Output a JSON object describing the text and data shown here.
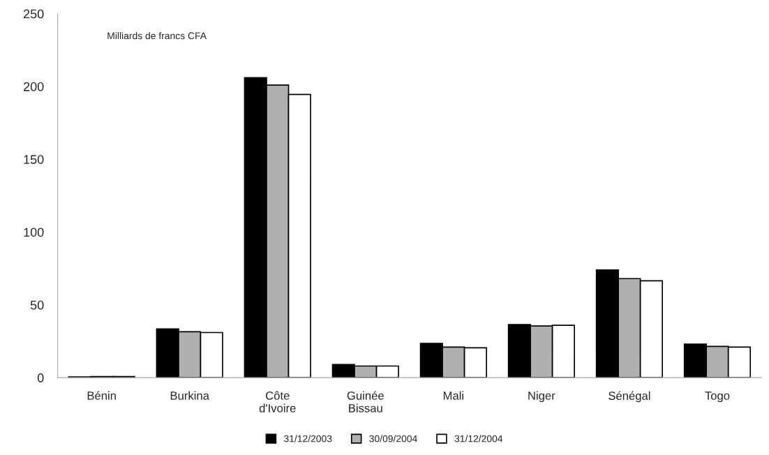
{
  "chart_data": {
    "type": "bar",
    "categories": [
      "Bénin",
      "Burkina",
      "Côte\nd'Ivoire",
      "Guinée\nBissau",
      "Mali",
      "Niger",
      "Sénégal",
      "Togo"
    ],
    "series": [
      {
        "name": "31/12/2003",
        "color": "#000000",
        "values": [
          0.5,
          33.5,
          206,
          9,
          23.5,
          36.5,
          74,
          23
        ]
      },
      {
        "name": "30/09/2004",
        "color": "#b0b0b0",
        "values": [
          0.8,
          31.5,
          201,
          8,
          21,
          35.5,
          68,
          21.5
        ]
      },
      {
        "name": "31/12/2004",
        "color": "#ffffff",
        "values": [
          0.8,
          31,
          194.5,
          8,
          20.5,
          36,
          66.5,
          21
        ]
      }
    ],
    "ylim": [
      0,
      250
    ],
    "yticks": [
      0,
      50,
      100,
      150,
      200,
      250
    ],
    "annotations": [
      "Milliards de francs CFA"
    ],
    "legend": "bottom",
    "grid": false
  }
}
